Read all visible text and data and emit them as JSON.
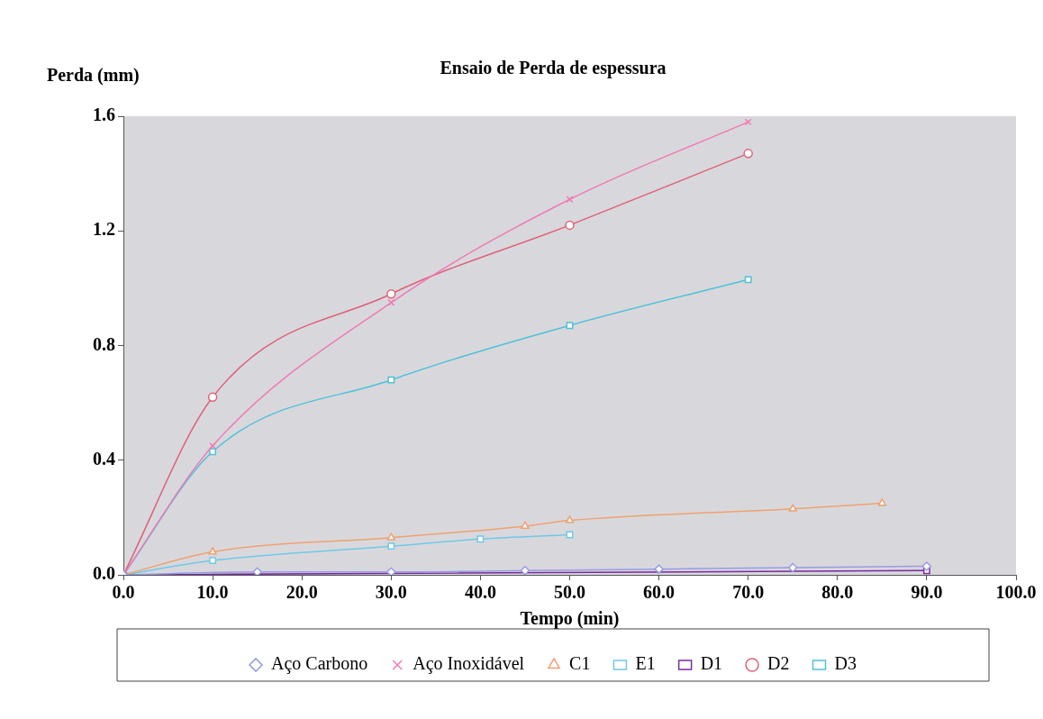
{
  "chart_data": {
    "type": "line",
    "title": "Ensaio de Perda de espessura",
    "xlabel": "Tempo (min)",
    "ylabel": "Perda  (mm)",
    "xlim": [
      0,
      100
    ],
    "xticks": [
      {
        "value": 0,
        "label": "0.0"
      },
      {
        "value": 10,
        "label": "10.0"
      },
      {
        "value": 20,
        "label": "20.0"
      },
      {
        "value": 30,
        "label": "30.0"
      },
      {
        "value": 40,
        "label": "40.0"
      },
      {
        "value": 50,
        "label": "50.0"
      },
      {
        "value": 60,
        "label": "60.0"
      },
      {
        "value": 70,
        "label": "70.0"
      },
      {
        "value": 80,
        "label": "80.0"
      },
      {
        "value": 90,
        "label": "90.0"
      },
      {
        "value": 100,
        "label": "100.0"
      }
    ],
    "ylim": [
      0,
      1.6
    ],
    "yticks": [
      {
        "value": 0,
        "label": "0.0"
      },
      {
        "value": 0.4,
        "label": "0.4"
      },
      {
        "value": 0.8,
        "label": "0.8"
      },
      {
        "value": 1.2,
        "label": "1.2"
      },
      {
        "value": 1.6,
        "label": "1.6"
      }
    ],
    "grid": false,
    "legend": "bottom",
    "series": [
      {
        "name": "Aço Carbono",
        "color": "#9a9ae6",
        "marker": "diamond",
        "x": [
          0,
          15,
          30,
          45,
          60,
          75,
          90
        ],
        "values": [
          0,
          0.01,
          0.01,
          0.015,
          0.02,
          0.025,
          0.03
        ]
      },
      {
        "name": "Aço Inoxidável",
        "color": "#f07ab4",
        "marker": "cross",
        "x": [
          0,
          10,
          30,
          50,
          70
        ],
        "values": [
          0,
          0.45,
          0.95,
          1.31,
          1.58
        ]
      },
      {
        "name": "C1",
        "color": "#f0a070",
        "marker": "triangle",
        "x": [
          0,
          10,
          30,
          45,
          50,
          75,
          85
        ],
        "values": [
          0,
          0.08,
          0.13,
          0.17,
          0.19,
          0.23,
          0.25
        ]
      },
      {
        "name": "E1",
        "color": "#70c8e8",
        "marker": "square",
        "x": [
          0,
          10,
          30,
          40,
          50
        ],
        "values": [
          0,
          0.05,
          0.1,
          0.125,
          0.14
        ]
      },
      {
        "name": "D1",
        "color": "#7a2aa0",
        "marker": "square",
        "x": [
          0,
          30,
          60,
          90
        ],
        "values": [
          0,
          null,
          null,
          0.015
        ]
      },
      {
        "name": "D2",
        "color": "#e0607a",
        "marker": "circle",
        "x": [
          0,
          10,
          30,
          50,
          70
        ],
        "values": [
          0,
          0.62,
          0.98,
          1.22,
          1.47
        ]
      },
      {
        "name": "D3",
        "color": "#50c0d8",
        "marker": "square",
        "x": [
          0,
          10,
          30,
          50,
          70
        ],
        "values": [
          0,
          0.43,
          0.68,
          0.87,
          1.03
        ]
      }
    ]
  }
}
